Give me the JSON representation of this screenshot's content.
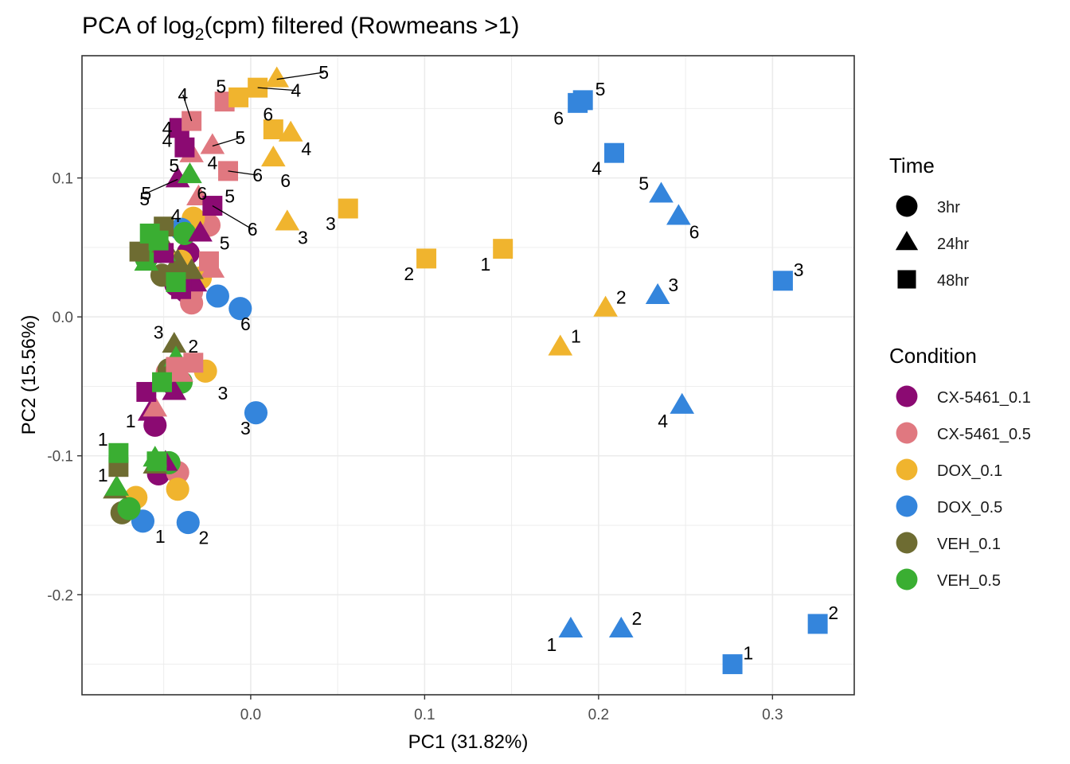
{
  "chart_data": {
    "type": "scatter",
    "title": "PCA of log2(cpm) filtered (Rowmeans >1)",
    "title_parts": {
      "pre": "PCA of log",
      "sub": "2",
      "post": "(cpm) filtered (Rowmeans >1)"
    },
    "xlabel": "PC1 (31.82%)",
    "ylabel": "PC2 (15.56%)",
    "xlim": [
      -0.097,
      0.347
    ],
    "ylim": [
      -0.272,
      0.188
    ],
    "xticks": [
      0.0,
      0.1,
      0.2,
      0.3
    ],
    "xtick_labels": [
      "0.0",
      "0.1",
      "0.2",
      "0.3"
    ],
    "yticks": [
      -0.2,
      -0.1,
      0.0,
      0.1
    ],
    "ytick_labels": [
      "-0.2",
      "-0.1",
      "0.0",
      "0.1"
    ],
    "grid": true,
    "legend_time": {
      "title": "Time",
      "items": [
        {
          "label": "3hr",
          "shape": "circle"
        },
        {
          "label": "24hr",
          "shape": "triangle"
        },
        {
          "label": "48hr",
          "shape": "square"
        }
      ]
    },
    "legend_condition": {
      "title": "Condition",
      "items": [
        {
          "label": "CX-5461_0.1",
          "color": "#8B0A72"
        },
        {
          "label": "CX-5461_0.5",
          "color": "#E07880"
        },
        {
          "label": "DOX_0.1",
          "color": "#F0B42E"
        },
        {
          "label": "DOX_0.5",
          "color": "#3485DC"
        },
        {
          "label": "VEH_0.1",
          "color": "#6E6C32"
        },
        {
          "label": "VEH_0.5",
          "color": "#3AAE32"
        }
      ]
    },
    "points": [
      {
        "x": -0.055,
        "y": -0.078,
        "shape": "circle",
        "cond": "CX-5461_0.1",
        "label": "1",
        "dx": -0.014,
        "dy": 0.003
      },
      {
        "x": -0.053,
        "y": -0.113,
        "shape": "circle",
        "cond": "CX-5461_0.1",
        "label": ""
      },
      {
        "x": -0.036,
        "y": 0.046,
        "shape": "circle",
        "cond": "CX-5461_0.1",
        "label": ""
      },
      {
        "x": -0.043,
        "y": 0.023,
        "shape": "circle",
        "cond": "CX-5461_0.1",
        "label": ""
      },
      {
        "x": -0.037,
        "y": 0.018,
        "shape": "circle",
        "cond": "CX-5461_0.1",
        "label": ""
      },
      {
        "x": -0.045,
        "y": -0.048,
        "shape": "circle",
        "cond": "CX-5461_0.1",
        "label": ""
      },
      {
        "x": -0.042,
        "y": -0.112,
        "shape": "circle",
        "cond": "CX-5461_0.5",
        "label": ""
      },
      {
        "x": -0.034,
        "y": 0.01,
        "shape": "circle",
        "cond": "CX-5461_0.5",
        "label": ""
      },
      {
        "x": -0.024,
        "y": 0.066,
        "shape": "circle",
        "cond": "CX-5461_0.5",
        "label": ""
      },
      {
        "x": -0.04,
        "y": 0.026,
        "shape": "circle",
        "cond": "CX-5461_0.5",
        "label": ""
      },
      {
        "x": -0.048,
        "y": -0.04,
        "shape": "circle",
        "cond": "CX-5461_0.5",
        "label": ""
      },
      {
        "x": -0.034,
        "y": 0.018,
        "shape": "circle",
        "cond": "CX-5461_0.5",
        "label": ""
      },
      {
        "x": -0.066,
        "y": -0.13,
        "shape": "circle",
        "cond": "DOX_0.1",
        "label": ""
      },
      {
        "x": -0.042,
        "y": -0.124,
        "shape": "circle",
        "cond": "DOX_0.1",
        "label": ""
      },
      {
        "x": -0.026,
        "y": -0.039,
        "shape": "circle",
        "cond": "DOX_0.1",
        "label": "3",
        "dx": 0.01,
        "dy": -0.016
      },
      {
        "x": -0.033,
        "y": 0.071,
        "shape": "circle",
        "cond": "DOX_0.1",
        "label": ""
      },
      {
        "x": -0.029,
        "y": 0.028,
        "shape": "circle",
        "cond": "DOX_0.1",
        "label": ""
      },
      {
        "x": -0.04,
        "y": 0.04,
        "shape": "circle",
        "cond": "DOX_0.1",
        "label": ""
      },
      {
        "x": -0.062,
        "y": -0.147,
        "shape": "circle",
        "cond": "DOX_0.5",
        "label": "1",
        "dx": 0.01,
        "dy": -0.011
      },
      {
        "x": -0.036,
        "y": -0.148,
        "shape": "circle",
        "cond": "DOX_0.5",
        "label": "2",
        "dx": 0.009,
        "dy": -0.011
      },
      {
        "x": 0.003,
        "y": -0.069,
        "shape": "circle",
        "cond": "DOX_0.5",
        "label": "3",
        "dx": -0.006,
        "dy": -0.011
      },
      {
        "x": -0.04,
        "y": 0.063,
        "shape": "circle",
        "cond": "DOX_0.5",
        "label": "4",
        "dx": -0.003,
        "dy": 0.01
      },
      {
        "x": -0.019,
        "y": 0.015,
        "shape": "circle",
        "cond": "DOX_0.5",
        "label": ""
      },
      {
        "x": -0.006,
        "y": 0.006,
        "shape": "circle",
        "cond": "DOX_0.5",
        "label": "6",
        "dx": 0.003,
        "dy": -0.011
      },
      {
        "x": -0.074,
        "y": -0.141,
        "shape": "circle",
        "cond": "VEH_0.1",
        "label": ""
      },
      {
        "x": -0.047,
        "y": -0.038,
        "shape": "circle",
        "cond": "VEH_0.1",
        "label": ""
      },
      {
        "x": -0.051,
        "y": 0.03,
        "shape": "circle",
        "cond": "VEH_0.1",
        "label": ""
      },
      {
        "x": -0.041,
        "y": 0.03,
        "shape": "circle",
        "cond": "VEH_0.1",
        "label": ""
      },
      {
        "x": -0.07,
        "y": -0.138,
        "shape": "circle",
        "cond": "VEH_0.5",
        "label": ""
      },
      {
        "x": -0.047,
        "y": -0.105,
        "shape": "circle",
        "cond": "VEH_0.5",
        "label": ""
      },
      {
        "x": -0.04,
        "y": -0.047,
        "shape": "circle",
        "cond": "VEH_0.5",
        "label": ""
      },
      {
        "x": -0.038,
        "y": 0.06,
        "shape": "circle",
        "cond": "VEH_0.5",
        "label": ""
      },
      {
        "x": -0.052,
        "y": 0.047,
        "shape": "circle",
        "cond": "VEH_0.5",
        "label": ""
      },
      {
        "x": -0.06,
        "y": 0.042,
        "shape": "circle",
        "cond": "VEH_0.5",
        "label": ""
      },
      {
        "x": -0.058,
        "y": -0.069,
        "shape": "triangle",
        "cond": "CX-5461_0.1",
        "label": ""
      },
      {
        "x": -0.044,
        "y": -0.054,
        "shape": "triangle",
        "cond": "CX-5461_0.1",
        "label": ""
      },
      {
        "x": -0.049,
        "y": -0.105,
        "shape": "triangle",
        "cond": "CX-5461_0.1",
        "label": ""
      },
      {
        "x": -0.042,
        "y": 0.099,
        "shape": "triangle",
        "cond": "CX-5461_0.1",
        "label": "5",
        "lx": -0.06,
        "ly": 0.089,
        "line": true
      },
      {
        "x": -0.029,
        "y": 0.06,
        "shape": "triangle",
        "cond": "CX-5461_0.1",
        "label": ""
      },
      {
        "x": -0.032,
        "y": 0.024,
        "shape": "triangle",
        "cond": "CX-5461_0.1",
        "label": ""
      },
      {
        "x": -0.055,
        "y": -0.066,
        "shape": "triangle",
        "cond": "CX-5461_0.5",
        "label": ""
      },
      {
        "x": -0.04,
        "y": -0.041,
        "shape": "triangle",
        "cond": "CX-5461_0.5",
        "label": ""
      },
      {
        "x": -0.022,
        "y": 0.123,
        "shape": "triangle",
        "cond": "CX-5461_0.5",
        "label": "5",
        "lx": -0.006,
        "ly": 0.129,
        "line": true
      },
      {
        "x": -0.034,
        "y": 0.117,
        "shape": "triangle",
        "cond": "CX-5461_0.5",
        "label": "4",
        "lx": -0.022,
        "ly": 0.111
      },
      {
        "x": -0.03,
        "y": 0.086,
        "shape": "triangle",
        "cond": "CX-5461_0.5",
        "label": ""
      },
      {
        "x": -0.022,
        "y": 0.034,
        "shape": "triangle",
        "cond": "CX-5461_0.5",
        "label": ""
      },
      {
        "x": 0.178,
        "y": -0.022,
        "shape": "triangle",
        "cond": "DOX_0.1",
        "label": "1",
        "dx": 0.009,
        "dy": 0.008
      },
      {
        "x": 0.204,
        "y": 0.006,
        "shape": "triangle",
        "cond": "DOX_0.1",
        "label": "2",
        "dx": 0.009,
        "dy": 0.008
      },
      {
        "x": 0.021,
        "y": 0.068,
        "shape": "triangle",
        "cond": "DOX_0.1",
        "label": "3",
        "dx": 0.009,
        "dy": -0.011
      },
      {
        "x": 0.023,
        "y": 0.132,
        "shape": "triangle",
        "cond": "DOX_0.1",
        "label": "4",
        "dx": 0.009,
        "dy": -0.011
      },
      {
        "x": 0.015,
        "y": 0.171,
        "shape": "triangle",
        "cond": "DOX_0.1",
        "label": "5",
        "lx": 0.042,
        "ly": 0.176,
        "line": true
      },
      {
        "x": 0.013,
        "y": 0.114,
        "shape": "triangle",
        "cond": "DOX_0.1",
        "label": "6",
        "dx": 0.007,
        "dy": -0.016
      },
      {
        "x": 0.184,
        "y": -0.225,
        "shape": "triangle",
        "cond": "DOX_0.5",
        "label": "1",
        "dx": -0.011,
        "dy": -0.011
      },
      {
        "x": 0.213,
        "y": -0.225,
        "shape": "triangle",
        "cond": "DOX_0.5",
        "label": "2",
        "dx": 0.009,
        "dy": 0.008
      },
      {
        "x": 0.234,
        "y": 0.015,
        "shape": "triangle",
        "cond": "DOX_0.5",
        "label": "3",
        "dx": 0.009,
        "dy": 0.008
      },
      {
        "x": 0.248,
        "y": -0.064,
        "shape": "triangle",
        "cond": "DOX_0.5",
        "label": "4",
        "dx": -0.011,
        "dy": -0.011
      },
      {
        "x": 0.236,
        "y": 0.088,
        "shape": "triangle",
        "cond": "DOX_0.5",
        "label": "5",
        "dx": -0.01,
        "dy": 0.008
      },
      {
        "x": 0.246,
        "y": 0.072,
        "shape": "triangle",
        "cond": "DOX_0.5",
        "label": "6",
        "dx": 0.009,
        "dy": -0.011
      },
      {
        "x": -0.078,
        "y": -0.125,
        "shape": "triangle",
        "cond": "VEH_0.1",
        "label": ""
      },
      {
        "x": -0.055,
        "y": -0.107,
        "shape": "triangle",
        "cond": "VEH_0.1",
        "label": ""
      },
      {
        "x": -0.044,
        "y": -0.02,
        "shape": "triangle",
        "cond": "VEH_0.1",
        "label": "3",
        "lx": -0.053,
        "ly": -0.011
      },
      {
        "x": -0.034,
        "y": 0.033,
        "shape": "triangle",
        "cond": "VEH_0.1",
        "label": ""
      },
      {
        "x": -0.05,
        "y": 0.052,
        "shape": "triangle",
        "cond": "VEH_0.1",
        "label": ""
      },
      {
        "x": -0.042,
        "y": 0.04,
        "shape": "triangle",
        "cond": "VEH_0.1",
        "label": ""
      },
      {
        "x": -0.077,
        "y": -0.123,
        "shape": "triangle",
        "cond": "VEH_0.5",
        "label": ""
      },
      {
        "x": -0.055,
        "y": -0.102,
        "shape": "triangle",
        "cond": "VEH_0.5",
        "label": ""
      },
      {
        "x": -0.043,
        "y": -0.03,
        "shape": "triangle",
        "cond": "VEH_0.5",
        "label": "2",
        "lx": -0.033,
        "ly": -0.021
      },
      {
        "x": -0.035,
        "y": 0.102,
        "shape": "triangle",
        "cond": "VEH_0.5",
        "label": "6",
        "lx": -0.028,
        "ly": 0.089
      },
      {
        "x": -0.06,
        "y": 0.039,
        "shape": "triangle",
        "cond": "VEH_0.5",
        "label": ""
      },
      {
        "x": -0.05,
        "y": 0.046,
        "shape": "triangle",
        "cond": "VEH_0.5",
        "label": ""
      },
      {
        "x": -0.06,
        "y": -0.054,
        "shape": "square",
        "cond": "CX-5461_0.1",
        "label": ""
      },
      {
        "x": -0.04,
        "y": 0.02,
        "shape": "square",
        "cond": "CX-5461_0.1",
        "label": ""
      },
      {
        "x": -0.041,
        "y": 0.136,
        "shape": "square",
        "cond": "CX-5461_0.1",
        "label": "4",
        "lx": -0.048,
        "ly": 0.136
      },
      {
        "x": -0.038,
        "y": 0.122,
        "shape": "square",
        "cond": "CX-5461_0.1",
        "label": "5",
        "lx": -0.044,
        "ly": 0.109
      },
      {
        "x": -0.022,
        "y": 0.08,
        "shape": "square",
        "cond": "CX-5461_0.1",
        "label": "6",
        "lx": 0.001,
        "ly": 0.063,
        "line": true
      },
      {
        "x": -0.05,
        "y": 0.046,
        "shape": "square",
        "cond": "CX-5461_0.1",
        "label": ""
      },
      {
        "x": -0.043,
        "y": -0.036,
        "shape": "square",
        "cond": "CX-5461_0.5",
        "label": ""
      },
      {
        "x": -0.033,
        "y": -0.033,
        "shape": "square",
        "cond": "CX-5461_0.5",
        "label": ""
      },
      {
        "x": -0.034,
        "y": 0.141,
        "shape": "square",
        "cond": "CX-5461_0.5",
        "label": "4",
        "lx": -0.039,
        "ly": 0.16,
        "line": true
      },
      {
        "x": -0.015,
        "y": 0.155,
        "shape": "square",
        "cond": "CX-5461_0.5",
        "label": "5",
        "lx": -0.017,
        "ly": 0.166
      },
      {
        "x": -0.013,
        "y": 0.105,
        "shape": "square",
        "cond": "CX-5461_0.5",
        "label": "6",
        "lx": 0.004,
        "ly": 0.102,
        "line": true
      },
      {
        "x": -0.024,
        "y": 0.04,
        "shape": "square",
        "cond": "CX-5461_0.5",
        "label": ""
      },
      {
        "x": 0.101,
        "y": 0.042,
        "shape": "square",
        "cond": "DOX_0.1",
        "label": "2",
        "dx": -0.01,
        "dy": -0.011
      },
      {
        "x": 0.145,
        "y": 0.049,
        "shape": "square",
        "cond": "DOX_0.1",
        "label": "1",
        "dx": -0.01,
        "dy": -0.011
      },
      {
        "x": 0.056,
        "y": 0.078,
        "shape": "square",
        "cond": "DOX_0.1",
        "label": "3",
        "dx": -0.01,
        "dy": -0.011
      },
      {
        "x": 0.004,
        "y": 0.165,
        "shape": "square",
        "cond": "DOX_0.1",
        "label": "4",
        "lx": 0.026,
        "ly": 0.163,
        "line": true
      },
      {
        "x": -0.007,
        "y": 0.158,
        "shape": "square",
        "cond": "DOX_0.1",
        "label": ""
      },
      {
        "x": 0.013,
        "y": 0.135,
        "shape": "square",
        "cond": "DOX_0.1",
        "label": "6",
        "lx": 0.01,
        "ly": 0.146
      },
      {
        "x": 0.277,
        "y": -0.25,
        "shape": "square",
        "cond": "DOX_0.5",
        "label": "1",
        "dx": 0.009,
        "dy": 0.008
      },
      {
        "x": 0.326,
        "y": -0.221,
        "shape": "square",
        "cond": "DOX_0.5",
        "label": "2",
        "dx": 0.009,
        "dy": 0.008
      },
      {
        "x": 0.306,
        "y": 0.026,
        "shape": "square",
        "cond": "DOX_0.5",
        "label": "3",
        "dx": 0.009,
        "dy": 0.008
      },
      {
        "x": 0.209,
        "y": 0.118,
        "shape": "square",
        "cond": "DOX_0.5",
        "label": "4",
        "dx": -0.01,
        "dy": -0.011
      },
      {
        "x": 0.191,
        "y": 0.156,
        "shape": "square",
        "cond": "DOX_0.5",
        "label": "5",
        "dx": 0.01,
        "dy": 0.008
      },
      {
        "x": 0.188,
        "y": 0.154,
        "shape": "square",
        "cond": "DOX_0.5",
        "label": "6",
        "dx": -0.011,
        "dy": -0.011
      },
      {
        "x": -0.076,
        "y": -0.108,
        "shape": "square",
        "cond": "VEH_0.1",
        "label": ""
      },
      {
        "x": -0.05,
        "y": 0.065,
        "shape": "square",
        "cond": "VEH_0.1",
        "label": ""
      },
      {
        "x": -0.064,
        "y": 0.047,
        "shape": "square",
        "cond": "VEH_0.1",
        "label": ""
      },
      {
        "x": -0.076,
        "y": -0.098,
        "shape": "square",
        "cond": "VEH_0.5",
        "label": "1",
        "lx": -0.085,
        "ly": -0.088
      },
      {
        "x": -0.054,
        "y": -0.104,
        "shape": "square",
        "cond": "VEH_0.5",
        "label": ""
      },
      {
        "x": -0.051,
        "y": -0.047,
        "shape": "square",
        "cond": "VEH_0.5",
        "label": ""
      },
      {
        "x": -0.058,
        "y": 0.06,
        "shape": "square",
        "cond": "VEH_0.5",
        "label": ""
      },
      {
        "x": -0.053,
        "y": 0.055,
        "shape": "square",
        "cond": "VEH_0.5",
        "label": ""
      },
      {
        "x": -0.043,
        "y": 0.025,
        "shape": "square",
        "cond": "VEH_0.5",
        "label": ""
      }
    ],
    "extra_labels": [
      {
        "text": "1",
        "x": -0.085,
        "y": -0.114,
        "near": "VEH_0.1 24hr"
      },
      {
        "text": "4",
        "x": -0.048,
        "y": 0.127,
        "near": "CX-5461_0.1 48hr"
      },
      {
        "text": "5",
        "x": -0.061,
        "y": 0.085,
        "near": "VEH_0.5 24hr"
      },
      {
        "text": "5",
        "x": -0.012,
        "y": 0.087,
        "near": "CX-5461_0.5 24hr"
      },
      {
        "text": "5",
        "x": -0.015,
        "y": 0.053,
        "near": "CX-5461_0.1 24hr"
      }
    ]
  }
}
